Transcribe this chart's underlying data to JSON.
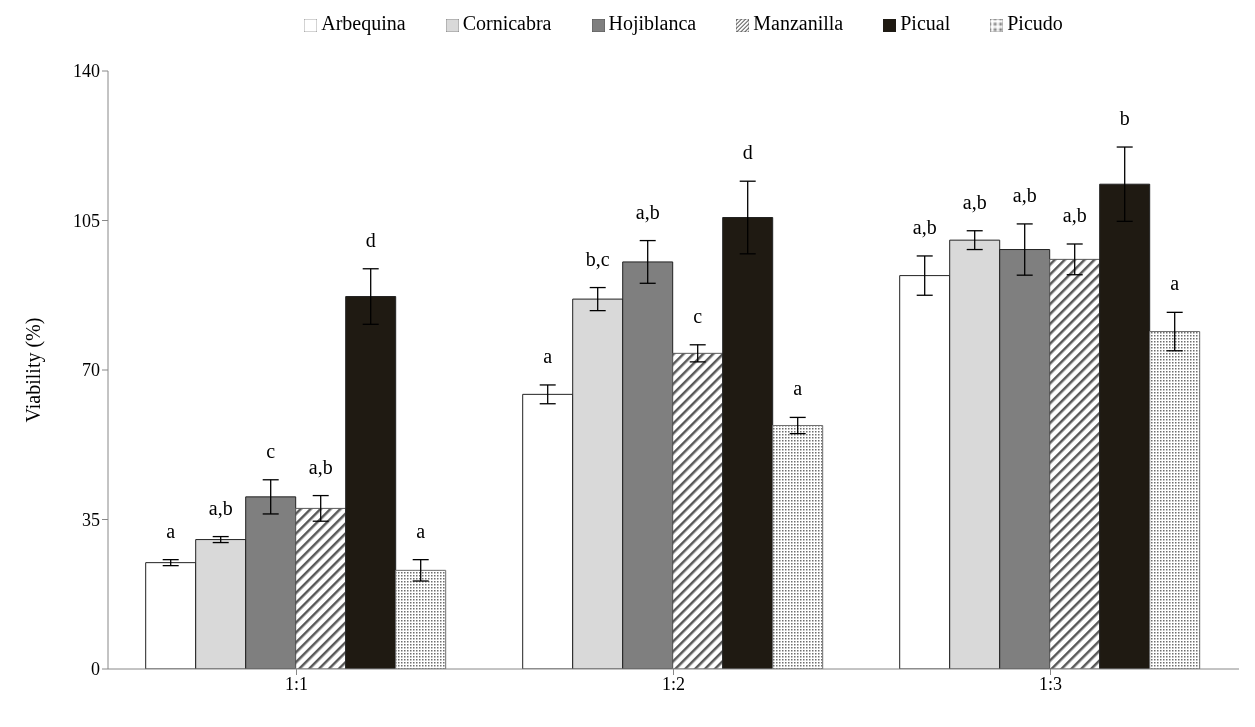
{
  "chart_data": {
    "type": "bar",
    "ylabel": "Viability (%)",
    "categories": [
      "1:1",
      "1:2",
      "1:3"
    ],
    "ylim": [
      0,
      140
    ],
    "yticks": [
      0,
      35,
      70,
      105,
      140
    ],
    "grid": false,
    "legend": "top",
    "series": [
      {
        "name": "Arbequina",
        "color": "#ffffff",
        "values": [
          24.9,
          64.3,
          92.1
        ],
        "errors": [
          0.7,
          2.2,
          4.6
        ],
        "value_labels": [
          "a",
          "a",
          "a,b"
        ]
      },
      {
        "name": "Cornicabra",
        "color": "#d9d9d9",
        "values": [
          30.3,
          86.6,
          100.4
        ],
        "errors": [
          0.7,
          2.7,
          2.2
        ],
        "value_labels": [
          "a,b",
          "b,c",
          "a,b"
        ]
      },
      {
        "name": "Hojiblanca",
        "color": "#7f7f7f",
        "values": [
          40.3,
          95.3,
          98.2
        ],
        "errors": [
          4,
          5,
          6
        ],
        "value_labels": [
          "c",
          "a,b",
          "a,b"
        ]
      },
      {
        "name": "Manzanilla",
        "color": "#595959",
        "values": [
          37.6,
          73.9,
          95.9
        ],
        "errors": [
          3,
          2,
          3.6
        ],
        "value_labels": [
          "a,b",
          "c",
          "a,b"
        ]
      },
      {
        "name": "Picual",
        "color": "#1f1a12",
        "values": [
          87.2,
          105.7,
          113.5
        ],
        "errors": [
          6.5,
          8.5,
          8.7
        ],
        "value_labels": [
          "d",
          "d",
          "b"
        ]
      },
      {
        "name": "Picudo",
        "color": "#6e6e6e",
        "values": [
          23.1,
          57,
          79
        ],
        "errors": [
          2.5,
          1.9,
          4.5
        ],
        "value_labels": [
          "a",
          "a",
          "a"
        ]
      }
    ]
  }
}
